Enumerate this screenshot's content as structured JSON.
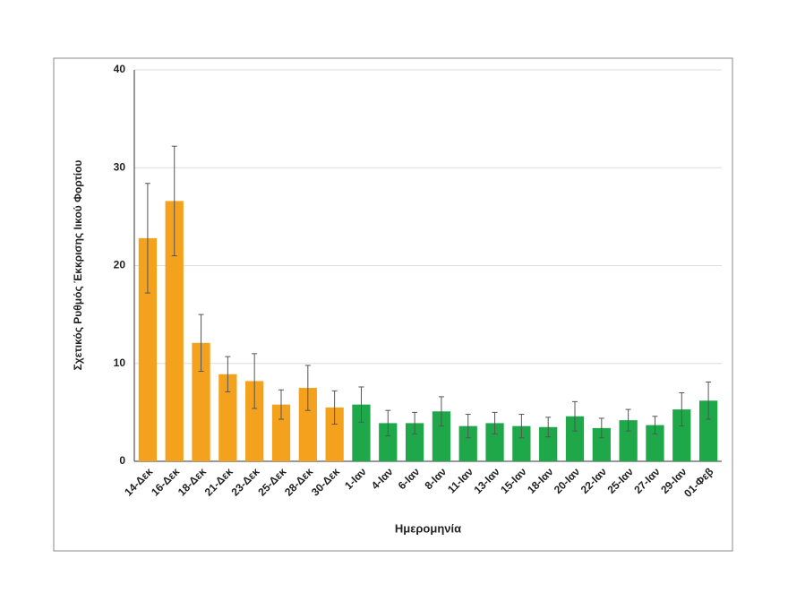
{
  "chart_data": {
    "type": "bar",
    "y_label": "Σχετικός Ρυθμός Έκκρισης Ιικού Φορτίου",
    "x_label": "Ημερομηνία",
    "categories": [
      "14-Δεκ",
      "16-Δεκ",
      "18-Δεκ",
      "21-Δεκ",
      "23-Δεκ",
      "25-Δεκ",
      "28-Δεκ",
      "30-Δεκ",
      "1-Ιαν",
      "4-Ιαν",
      "6-Ιαν",
      "8-Ιαν",
      "11-Ιαν",
      "13-Ιαν",
      "15-Ιαν",
      "18-Ιαν",
      "20-Ιαν",
      "22-Ιαν",
      "25-Ιαν",
      "27-Ιαν",
      "29-Ιαν",
      "01-Φεβ"
    ],
    "values": [
      22.8,
      26.6,
      12.1,
      8.9,
      8.2,
      5.8,
      7.5,
      5.5,
      5.8,
      3.9,
      3.9,
      5.1,
      3.6,
      3.9,
      3.6,
      3.5,
      4.6,
      3.4,
      4.2,
      3.7,
      5.3,
      6.2
    ],
    "errors": [
      5.6,
      5.6,
      2.9,
      1.8,
      2.8,
      1.5,
      2.3,
      1.7,
      1.8,
      1.3,
      1.1,
      1.5,
      1.2,
      1.1,
      1.2,
      1.0,
      1.5,
      1.0,
      1.1,
      0.9,
      1.7,
      1.9
    ],
    "colors": [
      "#f4a11e",
      "#f4a11e",
      "#f4a11e",
      "#f4a11e",
      "#f4a11e",
      "#f4a11e",
      "#f4a11e",
      "#f4a11e",
      "#1fa84a",
      "#1fa84a",
      "#1fa84a",
      "#1fa84a",
      "#1fa84a",
      "#1fa84a",
      "#1fa84a",
      "#1fa84a",
      "#1fa84a",
      "#1fa84a",
      "#1fa84a",
      "#1fa84a",
      "#1fa84a",
      "#1fa84a"
    ],
    "ylim": [
      0,
      40
    ],
    "yticks": [
      0,
      10,
      20,
      30,
      40
    ],
    "grid": true
  }
}
